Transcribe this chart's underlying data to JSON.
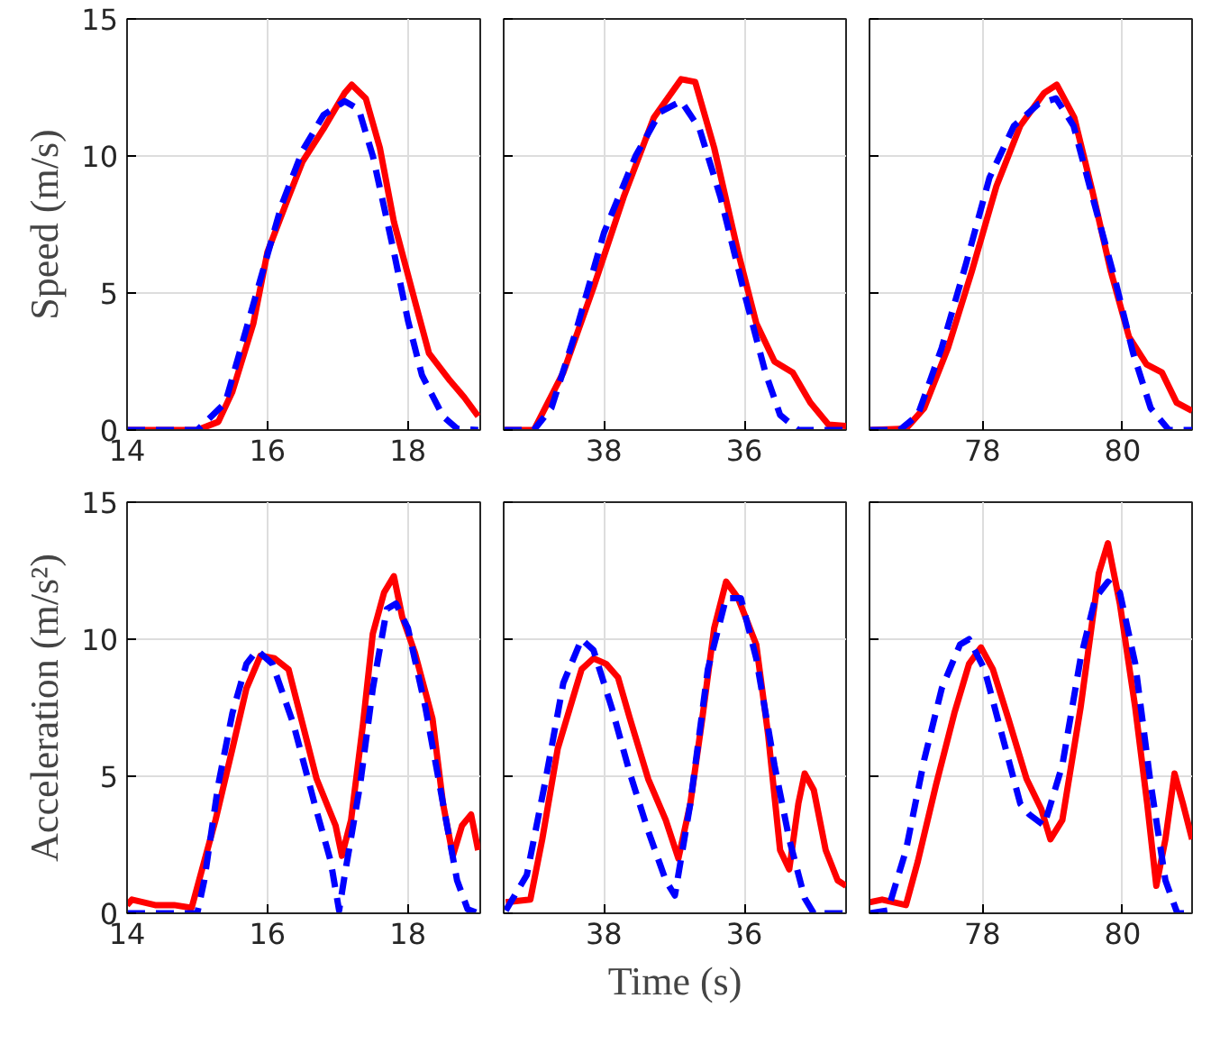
{
  "chart_data": [
    {
      "type": "line",
      "ylabel": "Speed (m/s)",
      "xlim": [
        14,
        19.03
      ],
      "xticks": [
        14,
        16,
        18
      ],
      "ylim": [
        0,
        15
      ],
      "yticks": [
        0,
        5,
        10,
        15
      ],
      "grid": true,
      "series": [
        {
          "color": "#ff0000",
          "line_style": "solid",
          "x": [
            14,
            15.0,
            15.3,
            15.5,
            15.8,
            16.0,
            16.3,
            16.5,
            16.8,
            17.1,
            17.2,
            17.4,
            17.6,
            17.8,
            18.1,
            18.3,
            18.6,
            18.8,
            19.0
          ],
          "values": [
            0,
            0,
            0.3,
            1.4,
            3.9,
            6.5,
            8.5,
            9.8,
            11.0,
            12.3,
            12.6,
            12.1,
            10.3,
            7.6,
            4.7,
            2.8,
            1.8,
            1.2,
            0.5
          ]
        },
        {
          "color": "#0000ff",
          "line_style": "dashed",
          "x": [
            14,
            15.0,
            15.4,
            15.6,
            15.9,
            16.2,
            16.5,
            16.8,
            17.1,
            17.3,
            17.5,
            17.8,
            18.0,
            18.2,
            18.5,
            18.7,
            19.0
          ],
          "values": [
            0,
            0,
            1.0,
            2.8,
            5.5,
            8.2,
            10.2,
            11.5,
            12.0,
            11.7,
            10.0,
            6.5,
            4.0,
            2.0,
            0.5,
            0.05,
            0
          ]
        }
      ]
    },
    {
      "type": "line",
      "xlim": [
        39.43,
        34.55
      ],
      "xticks": [
        38,
        36
      ],
      "ylim": [
        0,
        15
      ],
      "yticks": [
        0,
        5,
        10,
        15
      ],
      "grid": true,
      "tick_labels": "x",
      "series": [
        {
          "color": "#ff0000",
          "line_style": "solid",
          "x": [
            39.43,
            39.0,
            38.58,
            38.15,
            37.72,
            37.29,
            36.9,
            36.7,
            36.43,
            36.09,
            35.83,
            35.57,
            35.31,
            35.06,
            34.8,
            34.55
          ],
          "values": [
            0,
            0,
            2.1,
            5.2,
            8.5,
            11.4,
            12.8,
            12.7,
            10.3,
            6.5,
            3.9,
            2.5,
            2.1,
            1.0,
            0.2,
            0.15
          ]
        },
        {
          "color": "#0000ff",
          "line_style": "dashed",
          "x": [
            39.43,
            39.0,
            38.75,
            38.4,
            38.0,
            37.55,
            37.2,
            36.9,
            36.64,
            36.34,
            36.0,
            35.7,
            35.49,
            35.23,
            34.55
          ],
          "values": [
            0,
            0,
            0.8,
            3.6,
            7.2,
            10.0,
            11.6,
            12.0,
            11.0,
            8.5,
            5.0,
            2.1,
            0.55,
            0,
            0
          ]
        }
      ]
    },
    {
      "type": "line",
      "xlim": [
        76.39,
        80.99
      ],
      "xticks": [
        78,
        80
      ],
      "ylim": [
        0,
        15
      ],
      "yticks": [
        0,
        5,
        10,
        15
      ],
      "grid": true,
      "tick_labels": "x",
      "series": [
        {
          "color": "#ff0000",
          "line_style": "solid",
          "x": [
            76.39,
            76.91,
            77.17,
            77.51,
            77.85,
            78.2,
            78.54,
            78.88,
            79.06,
            79.31,
            79.57,
            79.83,
            80.09,
            80.34,
            80.56,
            80.77,
            80.99
          ],
          "values": [
            0,
            0.05,
            0.8,
            3.0,
            5.8,
            8.9,
            11.1,
            12.3,
            12.6,
            11.4,
            8.7,
            5.8,
            3.4,
            2.4,
            2.1,
            1.0,
            0.7
          ]
        },
        {
          "color": "#0000ff",
          "line_style": "dashed",
          "x": [
            76.39,
            76.82,
            77.08,
            77.42,
            77.77,
            78.1,
            78.45,
            78.8,
            79.05,
            79.3,
            79.55,
            79.9,
            80.15,
            80.4,
            80.66,
            80.99
          ],
          "values": [
            0,
            0,
            0.55,
            3.0,
            6.1,
            9.2,
            11.1,
            11.9,
            12.1,
            11.1,
            8.7,
            5.4,
            2.8,
            0.8,
            0,
            0
          ]
        }
      ]
    },
    {
      "type": "line",
      "ylabel": "Acceleration (m/s²)",
      "xlim": [
        14,
        19.03
      ],
      "xticks": [
        14,
        16,
        18
      ],
      "ylim": [
        0,
        15
      ],
      "yticks": [
        0,
        5,
        10,
        15
      ],
      "grid": true,
      "series": [
        {
          "color": "#ff0000",
          "line_style": "solid",
          "x": [
            14,
            14.07,
            14.4,
            14.67,
            14.92,
            15.1,
            15.26,
            15.5,
            15.7,
            15.9,
            16.1,
            16.3,
            16.5,
            16.7,
            16.97,
            17.06,
            17.19,
            17.36,
            17.5,
            17.66,
            17.8,
            17.92,
            18.1,
            18.35,
            18.5,
            18.64,
            18.77,
            18.9,
            19.0
          ],
          "values": [
            0.3,
            0.5,
            0.3,
            0.3,
            0.2,
            1.9,
            3.4,
            6.0,
            8.2,
            9.4,
            9.3,
            8.9,
            6.9,
            4.9,
            3.2,
            2.1,
            3.4,
            6.9,
            10.2,
            11.7,
            12.3,
            10.8,
            9.5,
            7.1,
            4.0,
            2.1,
            3.2,
            3.6,
            2.3
          ]
        },
        {
          "color": "#0000ff",
          "line_style": "dashed",
          "x": [
            14,
            15.0,
            15.1,
            15.3,
            15.5,
            15.7,
            15.85,
            16.07,
            16.37,
            16.67,
            16.9,
            17.02,
            17.1,
            17.32,
            17.5,
            17.7,
            17.83,
            18.0,
            18.25,
            18.5,
            18.7,
            18.85,
            19.0
          ],
          "values": [
            0,
            0,
            1.2,
            4.7,
            7.3,
            9.1,
            9.6,
            9.1,
            6.9,
            4.0,
            1.9,
            0.1,
            1.4,
            4.7,
            8.2,
            11.1,
            11.3,
            10.4,
            7.5,
            4.0,
            1.2,
            0.15,
            0
          ]
        }
      ]
    },
    {
      "type": "line",
      "xlabel": "Time (s)",
      "xlim": [
        39.43,
        34.55
      ],
      "xticks": [
        38,
        36
      ],
      "ylim": [
        0,
        15
      ],
      "yticks": [
        0,
        5,
        10,
        15
      ],
      "grid": true,
      "tick_labels": "x",
      "series": [
        {
          "color": "#ff0000",
          "line_style": "solid",
          "x": [
            39.4,
            39.05,
            38.88,
            38.66,
            38.45,
            38.32,
            38.15,
            37.97,
            37.8,
            37.63,
            37.37,
            37.12,
            36.94,
            36.77,
            36.6,
            36.43,
            36.26,
            36.09,
            35.83,
            35.66,
            35.49,
            35.36,
            35.23,
            35.14,
            35.01,
            34.84,
            34.67,
            34.55
          ],
          "values": [
            0.4,
            0.5,
            2.7,
            6.0,
            7.8,
            8.9,
            9.3,
            9.1,
            8.6,
            7.1,
            4.9,
            3.4,
            2.0,
            4.0,
            7.1,
            10.4,
            12.1,
            11.5,
            9.8,
            6.5,
            2.3,
            1.6,
            4.0,
            5.1,
            4.5,
            2.3,
            1.2,
            1.0
          ]
        },
        {
          "color": "#0000ff",
          "line_style": "dashed",
          "x": [
            39.4,
            39.1,
            38.83,
            38.58,
            38.32,
            38.15,
            37.89,
            37.63,
            37.37,
            37.12,
            36.99,
            36.77,
            36.52,
            36.26,
            36.05,
            35.83,
            35.57,
            35.36,
            35.14,
            35.01,
            34.55
          ],
          "values": [
            0.1,
            1.4,
            4.9,
            8.4,
            10.0,
            9.6,
            7.5,
            5.1,
            3.0,
            1.2,
            0.65,
            4.0,
            8.9,
            11.5,
            11.5,
            9.3,
            5.4,
            2.7,
            0.55,
            0,
            0
          ]
        }
      ]
    },
    {
      "type": "line",
      "xlim": [
        76.39,
        80.99
      ],
      "xticks": [
        78,
        80
      ],
      "ylim": [
        0,
        15
      ],
      "yticks": [
        0,
        5,
        10,
        15
      ],
      "grid": true,
      "tick_labels": "x",
      "series": [
        {
          "color": "#ff0000",
          "line_style": "solid",
          "x": [
            76.39,
            76.57,
            76.91,
            77.08,
            77.34,
            77.6,
            77.81,
            77.98,
            78.15,
            78.37,
            78.63,
            78.84,
            78.97,
            79.14,
            79.4,
            79.66,
            79.79,
            79.96,
            80.18,
            80.35,
            80.48,
            80.61,
            80.74,
            80.86,
            80.99
          ],
          "values": [
            0.4,
            0.5,
            0.3,
            1.9,
            4.7,
            7.3,
            9.1,
            9.7,
            8.9,
            7.1,
            4.9,
            3.8,
            2.7,
            3.4,
            7.5,
            12.4,
            13.5,
            11.3,
            7.5,
            4.0,
            1.0,
            2.7,
            5.1,
            4.0,
            2.7
          ]
        },
        {
          "color": "#0000ff",
          "line_style": "dashed",
          "x": [
            76.39,
            76.65,
            76.91,
            77.17,
            77.42,
            77.68,
            77.81,
            78.03,
            78.28,
            78.54,
            78.67,
            78.88,
            79.14,
            79.4,
            79.61,
            79.79,
            79.96,
            80.18,
            80.39,
            80.61,
            80.78,
            80.99
          ],
          "values": [
            0,
            0.1,
            2.3,
            5.6,
            8.2,
            9.8,
            10.0,
            8.9,
            6.5,
            4.0,
            3.6,
            3.2,
            5.4,
            9.3,
            11.5,
            12.1,
            11.7,
            9.1,
            4.9,
            1.2,
            0,
            0
          ]
        }
      ]
    }
  ]
}
